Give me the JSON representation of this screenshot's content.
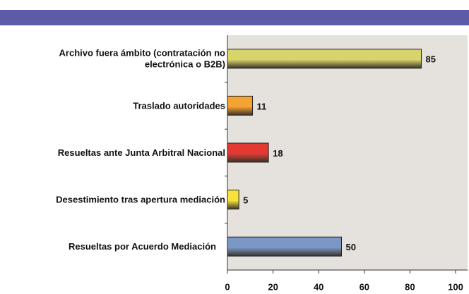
{
  "chart_data": {
    "type": "bar",
    "orientation": "horizontal",
    "categories": [
      "Archivo fuera ámbito (contratación no\nelectrónica o B2B)",
      "Traslado autoridades",
      "Resueltas ante Junta Arbitral Nacional",
      "Desestimiento tras apertura mediación",
      "Resueltas por Acuerdo Mediación"
    ],
    "values": [
      85,
      11,
      18,
      5,
      50
    ],
    "colors": [
      "#d6d46a",
      "#f5a433",
      "#e23a32",
      "#f6e23a",
      "#7b97c6"
    ],
    "xlim": [
      0,
      100
    ],
    "xticks": [
      0,
      20,
      40,
      60,
      80,
      100
    ],
    "grid": false
  }
}
